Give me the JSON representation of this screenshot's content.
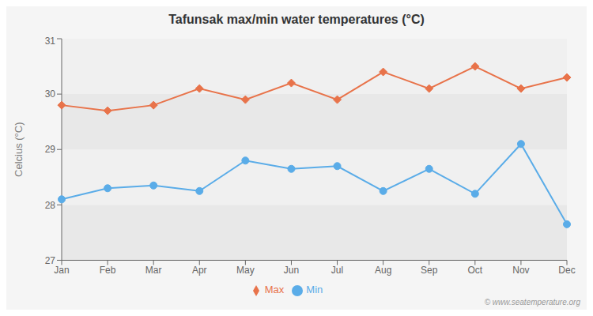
{
  "chart_data": {
    "type": "line",
    "title": "Tafunsak max/min water temperatures (°C)",
    "y_label": "Celcius (°C)",
    "categories": [
      "Jan",
      "Feb",
      "Mar",
      "Apr",
      "May",
      "Jun",
      "Jul",
      "Aug",
      "Sep",
      "Oct",
      "Nov",
      "Dec"
    ],
    "series": [
      {
        "name": "Max",
        "color": "#e8734a",
        "marker": "diamond",
        "values": [
          29.8,
          29.7,
          29.8,
          30.1,
          29.9,
          30.2,
          29.9,
          30.4,
          30.1,
          30.5,
          30.1,
          30.3
        ]
      },
      {
        "name": "Min",
        "color": "#5aace8",
        "marker": "circle",
        "values": [
          28.1,
          28.3,
          28.35,
          28.25,
          28.8,
          28.65,
          28.7,
          28.25,
          28.65,
          28.2,
          29.1,
          27.65
        ]
      }
    ],
    "ylim": [
      27,
      31
    ],
    "yticks": [
      27,
      28,
      29,
      30,
      31
    ],
    "legend": "bottom",
    "annotations": [
      "© www.seatemperature.org"
    ]
  }
}
